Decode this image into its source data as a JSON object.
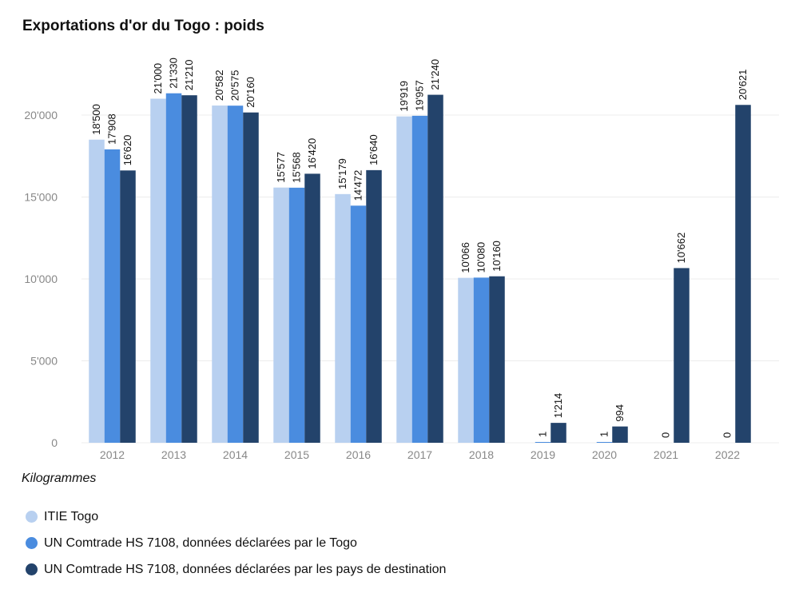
{
  "chart_data": {
    "type": "bar",
    "title": "Exportations d'or du Togo : poids",
    "ylabel": "Kilogrammes",
    "categories": [
      "2012",
      "2013",
      "2014",
      "2015",
      "2016",
      "2017",
      "2018",
      "2019",
      "2020",
      "2021",
      "2022"
    ],
    "ylim": [
      0,
      22000
    ],
    "yticks": [
      0,
      5000,
      10000,
      15000,
      20000
    ],
    "ytick_labels": [
      "0",
      "5'000",
      "10'000",
      "15'000",
      "20'000"
    ],
    "grid": true,
    "legend_position": "bottom-left",
    "series": [
      {
        "name": "ITIE Togo",
        "color": "#b8d0f0",
        "values": [
          18500,
          21000,
          20582,
          15577,
          15179,
          19919,
          10066,
          null,
          null,
          null,
          null
        ],
        "labels": [
          "18'500",
          "21'000",
          "20'582",
          "15'577",
          "15'179",
          "19'919",
          "10'066",
          "",
          "",
          "",
          ""
        ]
      },
      {
        "name": "UN Comtrade HS 7108, données déclarées par le Togo",
        "color": "#4a8cdf",
        "values": [
          17908,
          21330,
          20575,
          15568,
          14472,
          19957,
          10080,
          1,
          1,
          0,
          0
        ],
        "labels": [
          "17'908",
          "21'330",
          "20'575",
          "15'568",
          "14'472",
          "19'957",
          "10'080",
          "1",
          "1",
          "0",
          "0"
        ]
      },
      {
        "name": "UN Comtrade HS 7108, données déclarées par les pays de destination",
        "color": "#23436b",
        "values": [
          16620,
          21210,
          20160,
          16420,
          16640,
          21240,
          10160,
          1214,
          994,
          10662,
          20621
        ],
        "labels": [
          "16'620",
          "21'210",
          "20'160",
          "16'420",
          "16'640",
          "21'240",
          "10'160",
          "1'214",
          "994",
          "10'662",
          "20'621"
        ]
      }
    ]
  }
}
